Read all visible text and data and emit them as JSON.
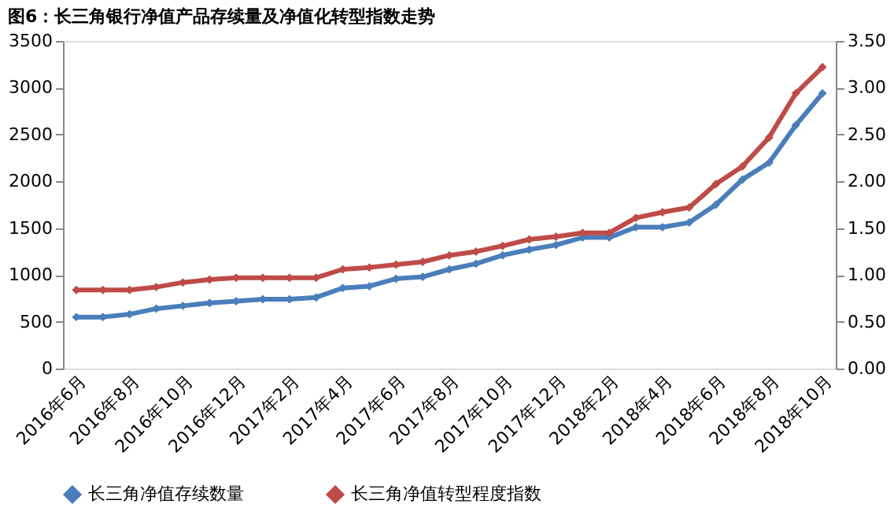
{
  "chart_data": {
    "type": "line",
    "title": "图6：长三角银行净值产品存续量及净值化转型指数走势",
    "categories": [
      "2016年6月",
      null,
      "2016年8月",
      null,
      "2016年10月",
      null,
      "2016年12月",
      null,
      "2017年2月",
      null,
      "2017年4月",
      null,
      "2017年6月",
      null,
      "2017年8月",
      null,
      "2017年10月",
      null,
      "2017年12月",
      null,
      "2018年2月",
      null,
      "2018年4月",
      null,
      "2018年6月",
      null,
      "2018年8月",
      null,
      "2018年10月"
    ],
    "series": [
      {
        "name": "长三角净值存续数量",
        "color": "#4a7ebb",
        "values": [
          550,
          550,
          580,
          640,
          670,
          700,
          720,
          740,
          740,
          760,
          860,
          880,
          960,
          980,
          1060,
          1120,
          1210,
          1270,
          1320,
          1400,
          1400,
          1510,
          1510,
          1560,
          1750,
          2020,
          2200,
          2600,
          2940
        ]
      },
      {
        "name": "长三角净值转型程度指数",
        "color": "#be4b48",
        "axis": "y2",
        "values": [
          0.84,
          0.84,
          0.84,
          0.87,
          0.92,
          0.95,
          0.97,
          0.97,
          0.97,
          0.97,
          1.06,
          1.08,
          1.11,
          1.14,
          1.21,
          1.25,
          1.31,
          1.38,
          1.41,
          1.45,
          1.45,
          1.61,
          1.67,
          1.72,
          1.97,
          2.16,
          2.47,
          2.94,
          3.22
        ]
      }
    ],
    "ylim": [
      0,
      3500
    ],
    "yticks": [
      0,
      500,
      1000,
      1500,
      2000,
      2500,
      3000,
      3500
    ],
    "y2lim": [
      0,
      3.5
    ],
    "y2ticks": [
      {
        "value": 0,
        "label": "0.00"
      },
      {
        "value": 0.5,
        "label": "0.50"
      },
      {
        "value": 1,
        "label": "1.00"
      },
      {
        "value": 1.5,
        "label": "1.50"
      },
      {
        "value": 2,
        "label": "2.00"
      },
      {
        "value": 2.5,
        "label": "2.50"
      },
      {
        "value": 3,
        "label": "3.00"
      },
      {
        "value": 3.5,
        "label": "3.50"
      }
    ],
    "legend": "bottom",
    "grid": false,
    "marker": "diamond",
    "line_style": "solid"
  }
}
